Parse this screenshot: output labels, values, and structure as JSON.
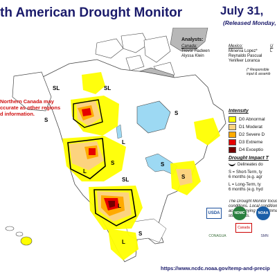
{
  "header": {
    "title": "th American Drought Monitor",
    "date": "July 31,",
    "released": "(Released Monday, A"
  },
  "analysts": {
    "heading": "Analysts:",
    "canada": {
      "label": "Canada:",
      "names": [
        "Trevor Hadwen",
        "Alyssa Klein"
      ]
    },
    "mexico": {
      "label": "Mexico:",
      "names": [
        "Minerva Lopez*",
        "Reynaldo Pascual",
        "Yenifeer Loranca"
      ]
    },
    "usa": {
      "label": "U",
      "names": [
        "L"
      ]
    },
    "responsible_note": [
      "(* Responsible",
      "input & assemb"
    ]
  },
  "northern_note": [
    "Northern Canada may",
    "ccurate as other regions",
    "d information."
  ],
  "legend": {
    "intensity_heading": "Intensity",
    "items": [
      {
        "label": "D0 Abnormal",
        "color": "#ffff00"
      },
      {
        "label": "D1 Moderat",
        "color": "#fcd37f"
      },
      {
        "label": "D2 Severe D",
        "color": "#ffaa00"
      },
      {
        "label": "D3 Extreme",
        "color": "#e60000"
      },
      {
        "label": "D4 Exceptio",
        "color": "#730000"
      }
    ],
    "impact_heading": "Drought Impact T",
    "boundary": "Delineates do",
    "short_term": [
      "S = Short-Term, ty",
      "6 months (e.g. agr"
    ],
    "long_term": [
      "L = Long-Term, ty",
      "6 months (e.g. hyd"
    ]
  },
  "focus_text": [
    "The Drought Monitor focuse",
    "conditions. Local conditions",
    "accompanying text summar",
    "statements."
  ],
  "map_labels": {
    "sl_north": "SL",
    "sl_west": "SL",
    "s_west": "S",
    "s_northeast": "S",
    "s_east": "S",
    "s_center": "S",
    "l_center": "L",
    "sl_plains": "SL",
    "l_south": "L",
    "l_mexico": "L",
    "sl_mexico": "S",
    "l_prairie": "L",
    "s_lake": "S"
  },
  "logos": [
    "USDA",
    "NDMC",
    "NOAA",
    "Canada",
    "CONAGUA",
    "SMN"
  ],
  "url": "https://www.ncdc.noaa.gov/temp-and-precip",
  "colors": {
    "land": "#ffffff",
    "water": "#9dd9f3",
    "greenland": "#b8b8b8",
    "d0": "#ffff00",
    "d1": "#fcd37f",
    "d2": "#ffaa00",
    "d3": "#e60000",
    "d4": "#730000",
    "title": "#1b1b6b",
    "note": "#d01010"
  }
}
